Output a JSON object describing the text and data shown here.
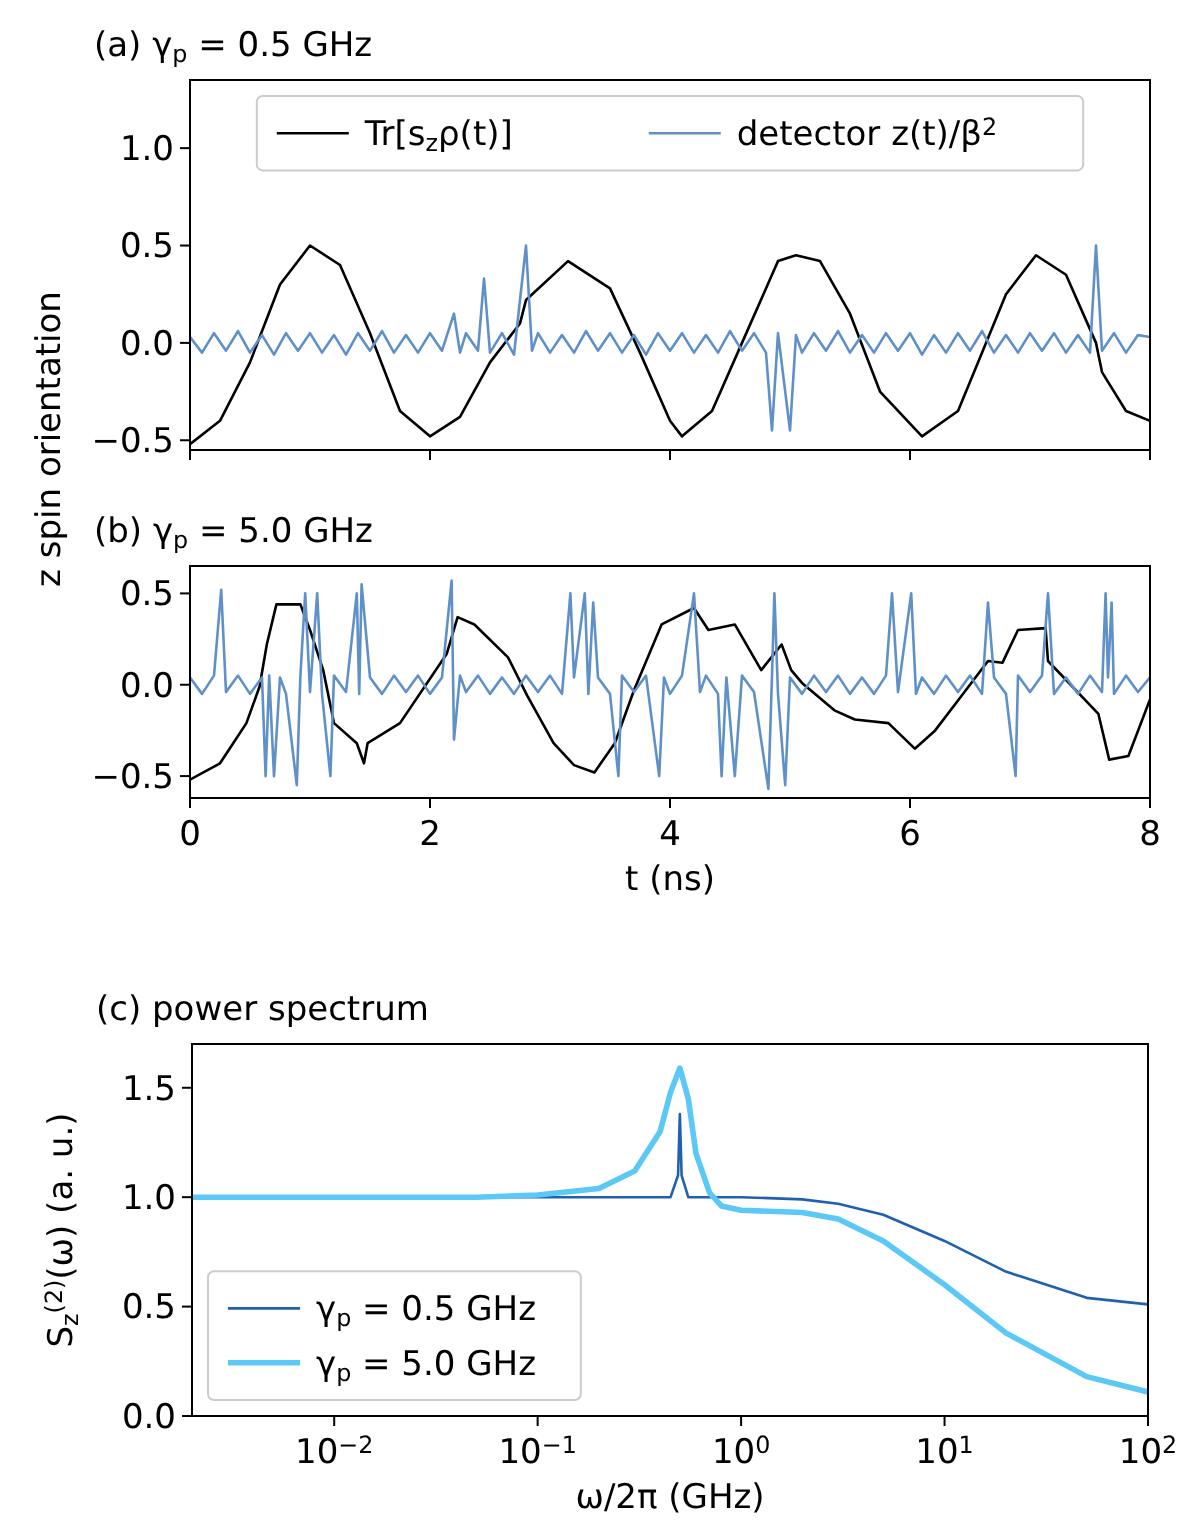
{
  "chart_data": [
    {
      "type": "line",
      "title": "(a) γ$_{p}$ = 0.5 GHz",
      "ylabel": "z spin orientation",
      "xlim": [
        0,
        8
      ],
      "ylim": [
        -0.55,
        1.35
      ],
      "xticks": [
        0,
        2,
        4,
        6,
        8
      ],
      "yticks": [
        {
          "value": -0.5,
          "label": "−0.5"
        },
        {
          "value": 0,
          "label": "0.0"
        },
        {
          "value": 0.5,
          "label": "0.5"
        },
        {
          "value": 1,
          "label": "1.0"
        }
      ],
      "tick_labels": "y",
      "legend": "top",
      "series": [
        {
          "name": "Tr[s$_{z}$ρ(t)]",
          "color": "#000000",
          "x": [
            0,
            0.25,
            0.5,
            0.75,
            1.0,
            1.25,
            1.5,
            1.75,
            2.0,
            2.25,
            2.5,
            2.75,
            2.8,
            3.15,
            3.5,
            3.75,
            4.0,
            4.1,
            4.35,
            4.6,
            4.85,
            4.9,
            5.05,
            5.25,
            5.5,
            5.75,
            6.1,
            6.4,
            6.6,
            6.8,
            7.05,
            7.3,
            7.55,
            7.6,
            7.8,
            8.0
          ],
          "values": [
            -0.52,
            -0.4,
            -0.1,
            0.3,
            0.5,
            0.4,
            0.05,
            -0.35,
            -0.48,
            -0.38,
            -0.1,
            0.1,
            0.22,
            0.42,
            0.28,
            -0.05,
            -0.4,
            -0.48,
            -0.35,
            0.0,
            0.35,
            0.42,
            0.45,
            0.42,
            0.15,
            -0.25,
            -0.48,
            -0.35,
            -0.05,
            0.25,
            0.45,
            0.35,
            0.0,
            -0.15,
            -0.35,
            -0.4
          ]
        },
        {
          "name": "detector z(t)/β$^{2}$",
          "color": "#6090c8",
          "x": [
            0,
            0.1,
            0.2,
            0.3,
            0.4,
            0.5,
            0.6,
            0.7,
            0.8,
            0.9,
            1.0,
            1.1,
            1.2,
            1.3,
            1.4,
            1.5,
            1.6,
            1.7,
            1.8,
            1.9,
            2.0,
            2.1,
            2.2,
            2.25,
            2.3,
            2.4,
            2.45,
            2.5,
            2.6,
            2.7,
            2.8,
            2.85,
            2.9,
            3.0,
            3.1,
            3.2,
            3.3,
            3.4,
            3.5,
            3.6,
            3.7,
            3.8,
            3.9,
            4.0,
            4.1,
            4.2,
            4.3,
            4.4,
            4.5,
            4.6,
            4.7,
            4.8,
            4.85,
            4.9,
            5.0,
            5.05,
            5.1,
            5.2,
            5.3,
            5.4,
            5.5,
            5.6,
            5.7,
            5.8,
            5.9,
            6.0,
            6.1,
            6.2,
            6.3,
            6.4,
            6.5,
            6.6,
            6.7,
            6.8,
            6.9,
            7.0,
            7.1,
            7.2,
            7.3,
            7.4,
            7.5,
            7.55,
            7.6,
            7.7,
            7.8,
            7.9,
            8.0
          ],
          "values": [
            0.03,
            -0.05,
            0.05,
            -0.04,
            0.06,
            -0.05,
            0.04,
            -0.06,
            0.05,
            -0.04,
            0.05,
            -0.05,
            0.04,
            -0.06,
            0.05,
            -0.04,
            0.06,
            -0.05,
            0.04,
            -0.05,
            0.05,
            -0.04,
            0.15,
            -0.05,
            0.05,
            -0.04,
            0.33,
            -0.05,
            0.05,
            -0.06,
            0.5,
            -0.04,
            0.05,
            -0.05,
            0.04,
            -0.05,
            0.06,
            -0.04,
            0.05,
            -0.05,
            0.04,
            -0.06,
            0.05,
            -0.04,
            0.05,
            -0.05,
            0.04,
            -0.05,
            0.06,
            -0.04,
            0.05,
            -0.05,
            -0.45,
            0.05,
            -0.45,
            0.04,
            -0.05,
            0.05,
            -0.04,
            0.06,
            -0.05,
            0.04,
            -0.05,
            0.05,
            -0.04,
            0.05,
            -0.06,
            0.04,
            -0.05,
            0.05,
            -0.04,
            0.06,
            -0.05,
            0.04,
            -0.05,
            0.05,
            -0.04,
            0.05,
            -0.05,
            0.04,
            -0.05,
            0.5,
            -0.04,
            0.05,
            -0.05,
            0.04,
            0.03
          ]
        }
      ]
    },
    {
      "type": "line",
      "title": "(b) γ$_{p}$ = 5.0 GHz",
      "xlabel": "t (ns)",
      "xlim": [
        0,
        8
      ],
      "ylim": [
        -0.62,
        0.65
      ],
      "xticks": [
        0,
        2,
        4,
        6,
        8
      ],
      "yticks": [
        {
          "value": -0.5,
          "label": "−0.5"
        },
        {
          "value": 0,
          "label": "0.0"
        },
        {
          "value": 0.5,
          "label": "0.5"
        }
      ],
      "series": [
        {
          "color": "#000000",
          "x": [
            0,
            0.25,
            0.33,
            0.47,
            0.58,
            0.64,
            0.72,
            0.92,
            1.0,
            1.11,
            1.2,
            1.39,
            1.45,
            1.48,
            1.75,
            2.14,
            2.23,
            2.37,
            2.65,
            2.81,
            3.03,
            3.2,
            3.37,
            3.54,
            3.7,
            3.93,
            4.2,
            4.32,
            4.54,
            4.76,
            4.93,
            5.01,
            5.1,
            5.37,
            5.54,
            5.82,
            6.04,
            6.21,
            6.43,
            6.65,
            6.77,
            6.9,
            7.13,
            7.15,
            7.57,
            7.66,
            7.82,
            8.0
          ],
          "values": [
            -0.52,
            -0.43,
            -0.35,
            -0.21,
            -0.01,
            0.22,
            0.44,
            0.44,
            0.3,
            0.08,
            -0.21,
            -0.32,
            -0.43,
            -0.32,
            -0.21,
            0.17,
            0.37,
            0.33,
            0.15,
            -0.06,
            -0.32,
            -0.44,
            -0.48,
            -0.32,
            -0.03,
            0.33,
            0.42,
            0.3,
            0.33,
            0.08,
            0.22,
            0.08,
            0.01,
            -0.14,
            -0.19,
            -0.21,
            -0.35,
            -0.25,
            -0.06,
            0.13,
            0.12,
            0.3,
            0.31,
            0.13,
            -0.16,
            -0.41,
            -0.39,
            -0.08
          ]
        },
        {
          "color": "#6090c8",
          "x": [
            0,
            0.1,
            0.2,
            0.26,
            0.3,
            0.4,
            0.5,
            0.6,
            0.63,
            0.66,
            0.7,
            0.75,
            0.8,
            0.89,
            0.92,
            0.96,
            1.0,
            1.06,
            1.1,
            1.17,
            1.2,
            1.3,
            1.39,
            1.41,
            1.43,
            1.5,
            1.6,
            1.7,
            1.8,
            1.9,
            2.0,
            2.1,
            2.18,
            2.2,
            2.25,
            2.3,
            2.4,
            2.5,
            2.6,
            2.7,
            2.8,
            2.9,
            3.0,
            3.1,
            3.17,
            3.2,
            3.29,
            3.32,
            3.36,
            3.4,
            3.5,
            3.57,
            3.6,
            3.7,
            3.8,
            3.91,
            3.95,
            4.0,
            4.1,
            4.2,
            4.25,
            4.3,
            4.4,
            4.43,
            4.47,
            4.54,
            4.6,
            4.7,
            4.82,
            4.85,
            4.87,
            4.9,
            4.96,
            5.0,
            5.1,
            5.2,
            5.3,
            5.4,
            5.5,
            5.6,
            5.7,
            5.8,
            5.85,
            5.9,
            6.01,
            6.05,
            6.1,
            6.2,
            6.3,
            6.4,
            6.5,
            6.6,
            6.65,
            6.7,
            6.8,
            6.88,
            6.9,
            7.0,
            7.1,
            7.15,
            7.2,
            7.3,
            7.4,
            7.5,
            7.6,
            7.63,
            7.65,
            7.68,
            7.7,
            7.8,
            7.9,
            8.0
          ],
          "values": [
            0.04,
            -0.05,
            0.05,
            0.52,
            -0.04,
            0.05,
            -0.05,
            0.04,
            -0.5,
            0.05,
            -0.5,
            0.04,
            -0.05,
            -0.55,
            0.05,
            0.5,
            -0.04,
            0.5,
            -0.05,
            -0.5,
            0.05,
            -0.04,
            0.5,
            -0.05,
            0.55,
            0.04,
            -0.05,
            0.05,
            -0.04,
            0.05,
            -0.05,
            0.04,
            0.57,
            -0.3,
            0.05,
            -0.04,
            0.05,
            -0.05,
            0.04,
            -0.05,
            0.05,
            -0.04,
            0.05,
            -0.05,
            0.5,
            0.04,
            0.5,
            -0.05,
            0.45,
            0.04,
            -0.05,
            -0.5,
            0.05,
            -0.04,
            0.05,
            -0.5,
            0.04,
            -0.05,
            0.05,
            0.5,
            -0.04,
            0.05,
            -0.05,
            -0.5,
            0.04,
            -0.5,
            0.05,
            -0.04,
            -0.57,
            0.05,
            0.5,
            -0.05,
            -0.55,
            0.04,
            -0.05,
            0.05,
            -0.04,
            0.05,
            -0.05,
            0.04,
            -0.05,
            0.05,
            0.5,
            -0.04,
            0.5,
            -0.05,
            0.04,
            -0.05,
            0.05,
            -0.04,
            0.05,
            -0.05,
            0.45,
            0.04,
            -0.05,
            -0.5,
            0.05,
            -0.04,
            0.05,
            0.5,
            -0.05,
            0.04,
            -0.05,
            0.05,
            -0.04,
            0.5,
            0.04,
            0.45,
            -0.05,
            0.05,
            -0.04,
            0.04
          ]
        }
      ]
    },
    {
      "type": "line",
      "title": "(c) power spectrum",
      "xlabel": "ω/2π (GHz)",
      "ylabel": "S$_{z}$$^{(2)}$(ω) (a. u.)",
      "log": "x",
      "xlim": [
        0.002,
        100
      ],
      "ylim": [
        0,
        1.7
      ],
      "xticks": [
        {
          "value": 0.01,
          "label": "10$^{−2}$"
        },
        {
          "value": 0.1,
          "label": "10$^{−1}$"
        },
        {
          "value": 1,
          "label": "10$^{0}$"
        },
        {
          "value": 10,
          "label": "10$^{1}$"
        },
        {
          "value": 100,
          "label": "10$^{2}$"
        }
      ],
      "yticks": [
        {
          "value": 0,
          "label": "0.0"
        },
        {
          "value": 0.5,
          "label": "0.5"
        },
        {
          "value": 1,
          "label": "1.0"
        },
        {
          "value": 1.5,
          "label": "1.5"
        }
      ],
      "legend": "bottom left",
      "series": [
        {
          "name": "γ$_{p}$ = 0.5 GHz",
          "color": "#2060b0",
          "x": [
            0.002,
            0.3,
            0.45,
            0.49,
            0.5,
            0.51,
            0.55,
            1,
            2,
            3,
            5,
            10,
            20,
            50,
            100
          ],
          "values": [
            1,
            1,
            1,
            1.1,
            1.38,
            1.1,
            1,
            1,
            0.99,
            0.97,
            0.92,
            0.8,
            0.66,
            0.54,
            0.51
          ]
        },
        {
          "name": "γ$_{p}$ = 5.0 GHz",
          "color": "#5bc8f5",
          "x": [
            0.002,
            0.05,
            0.1,
            0.2,
            0.3,
            0.4,
            0.45,
            0.5,
            0.55,
            0.6,
            0.7,
            0.8,
            1,
            2,
            3,
            5,
            10,
            20,
            50,
            100
          ],
          "values": [
            1,
            1,
            1.01,
            1.04,
            1.12,
            1.3,
            1.48,
            1.59,
            1.45,
            1.2,
            1.02,
            0.96,
            0.94,
            0.93,
            0.9,
            0.8,
            0.6,
            0.38,
            0.18,
            0.11
          ]
        }
      ]
    }
  ]
}
